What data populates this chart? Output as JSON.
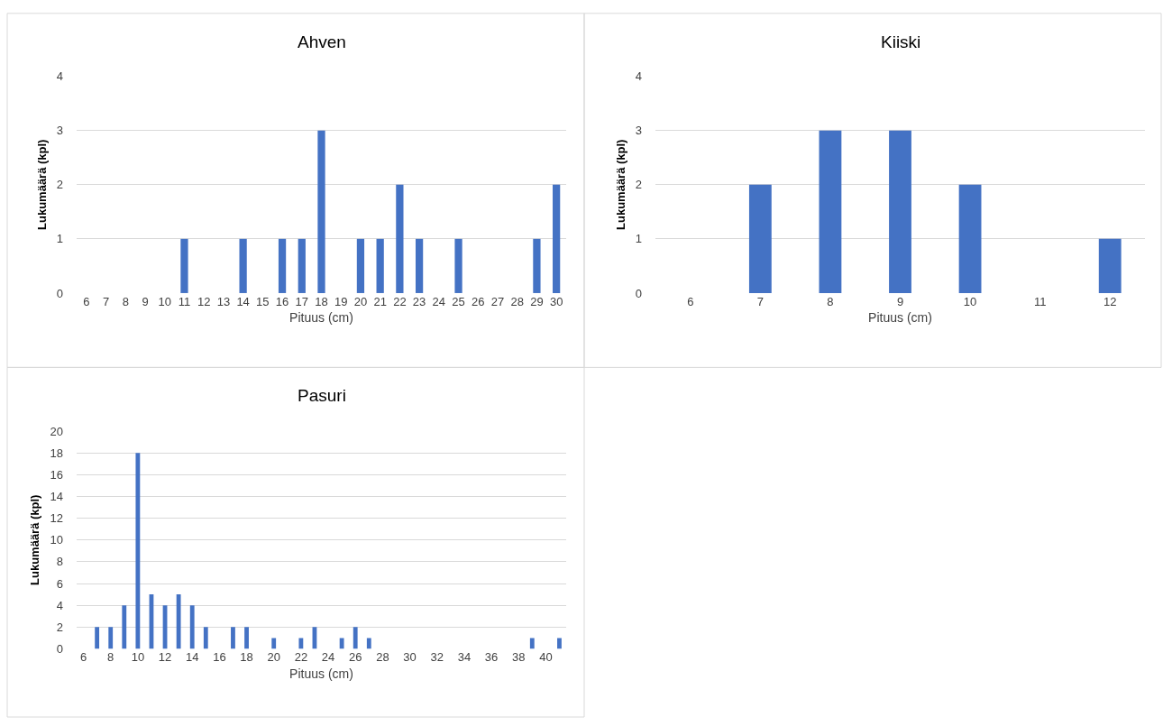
{
  "chart_data": [
    {
      "type": "bar",
      "title": "Ahven",
      "xlabel": "Pituus (cm)",
      "ylabel": "Lukumäärä (kpl)",
      "categories": [
        "6",
        "7",
        "8",
        "9",
        "10",
        "11",
        "12",
        "13",
        "14",
        "15",
        "16",
        "17",
        "18",
        "19",
        "20",
        "21",
        "22",
        "23",
        "24",
        "25",
        "26",
        "27",
        "28",
        "29",
        "30"
      ],
      "values": [
        0,
        0,
        0,
        0,
        0,
        1,
        0,
        0,
        1,
        0,
        1,
        1,
        3,
        0,
        1,
        1,
        2,
        1,
        0,
        1,
        0,
        0,
        0,
        1,
        2
      ],
      "color": "#4472c4",
      "ylim": [
        0,
        4
      ],
      "yticks": [
        0,
        1,
        2,
        3,
        4
      ],
      "grid": "y"
    },
    {
      "type": "bar",
      "title": "Kiiski",
      "xlabel": "Pituus (cm)",
      "ylabel": "Lukumäärä (kpl)",
      "categories": [
        "6",
        "7",
        "8",
        "9",
        "10",
        "11",
        "12"
      ],
      "values": [
        0,
        2,
        3,
        3,
        2,
        0,
        1
      ],
      "color": "#4472c4",
      "ylim": [
        0,
        4
      ],
      "yticks": [
        0,
        1,
        2,
        3,
        4
      ],
      "grid": "y"
    },
    {
      "type": "bar",
      "title": "Pasuri",
      "xlabel": "Pituus (cm)",
      "ylabel": "Lukumäärä (kpl)",
      "categories": [
        "6",
        null,
        "8",
        null,
        "10",
        null,
        "12",
        null,
        "14",
        null,
        "16",
        null,
        "18",
        null,
        "20",
        null,
        "22",
        null,
        "24",
        null,
        "26",
        null,
        "28",
        null,
        "30",
        null,
        "32",
        null,
        "34",
        null,
        "36",
        null,
        "38",
        null,
        "40",
        null
      ],
      "values": [
        0,
        2,
        2,
        4,
        18,
        5,
        4,
        5,
        4,
        2,
        0,
        2,
        2,
        0,
        1,
        0,
        1,
        2,
        0,
        1,
        2,
        1,
        0,
        0,
        0,
        0,
        0,
        0,
        0,
        0,
        0,
        0,
        0,
        1,
        0,
        1
      ],
      "color": "#4472c4",
      "ylim": [
        0,
        20
      ],
      "yticks": [
        0,
        2,
        4,
        6,
        8,
        10,
        12,
        14,
        16,
        18,
        20
      ],
      "grid": "y"
    }
  ]
}
